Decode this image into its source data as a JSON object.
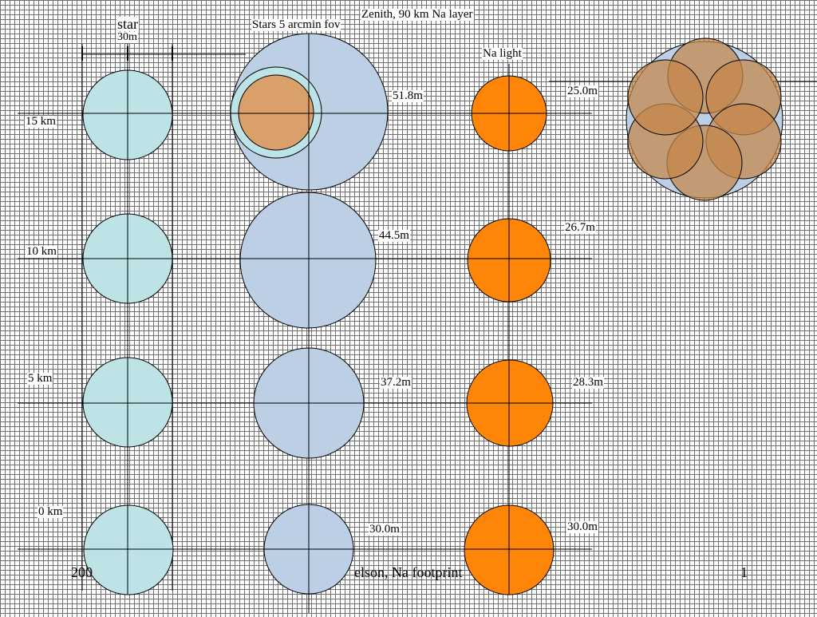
{
  "headers": {
    "star": "star",
    "star_size": "30m",
    "stars_fov": "Stars 5 arcmin fov",
    "zenith": "Zenith, 90 km Na layer",
    "na_light": "Na light"
  },
  "altitudes": [
    "15 km",
    "10 km",
    "5 km",
    "0 km"
  ],
  "stars_fov_sizes": [
    "51.8m",
    "44.5m",
    "37.2m",
    "30.0m"
  ],
  "na_light_sizes": [
    "25.0m",
    "26.7m",
    "28.3m",
    "30.0m"
  ],
  "footer": {
    "left": "200",
    "center": "elson, Na footprint",
    "page": "1"
  },
  "colors": {
    "star_fill": "#bde3e6",
    "fov_fill": "#bccfe4",
    "na_fill": "#ff8509",
    "overlap_fill": "#d9a06a",
    "stroke": "#000000"
  }
}
